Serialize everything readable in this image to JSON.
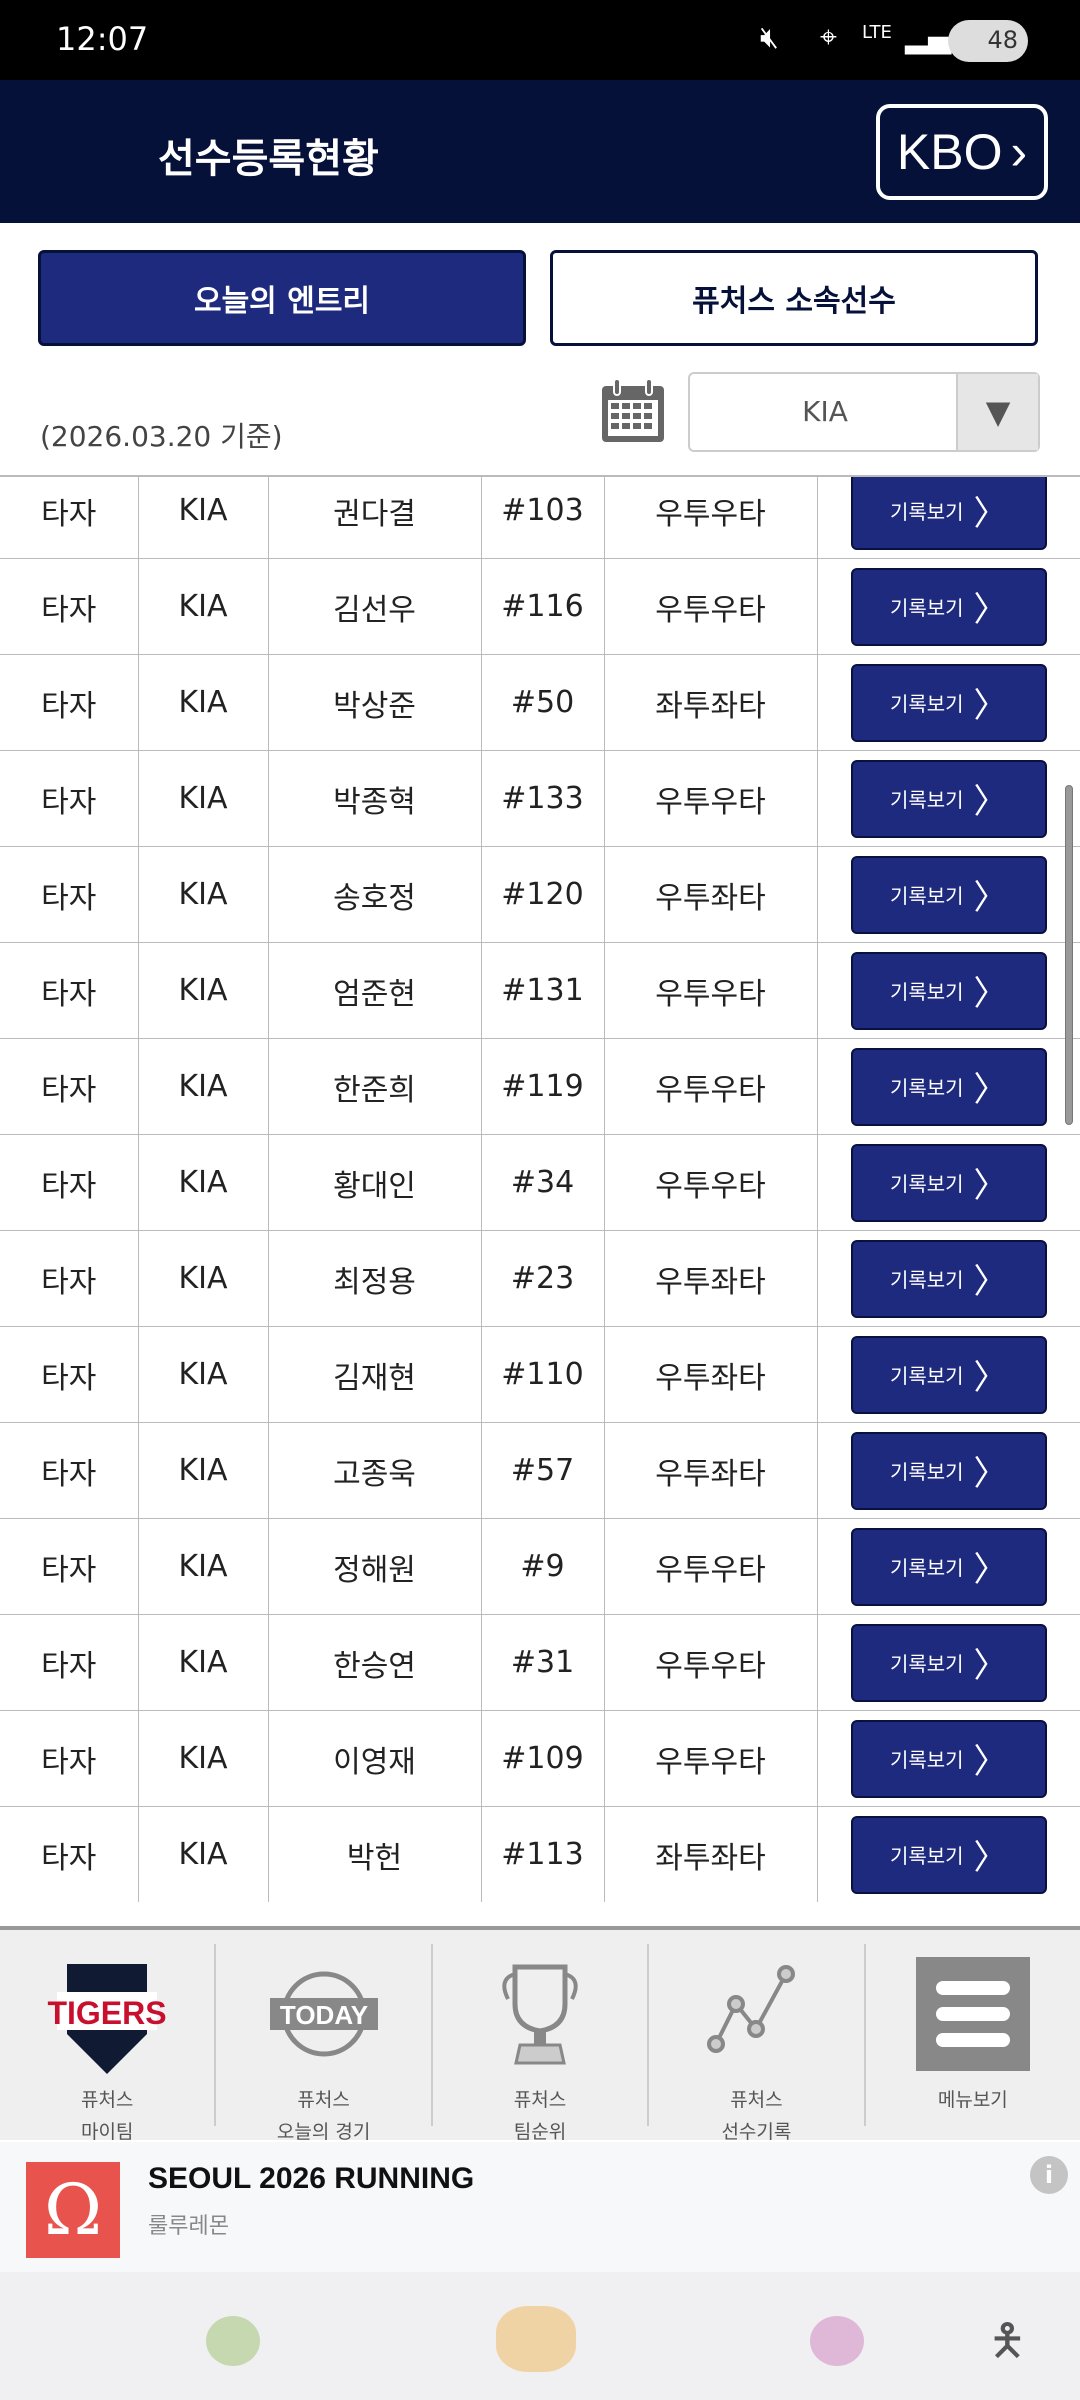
{
  "status": {
    "time": "12:07",
    "battery": "48",
    "network": "LTE"
  },
  "header": {
    "title": "선수등록현황",
    "kbo_label": "KBO",
    "kbo_chevron": "›"
  },
  "tabs": [
    {
      "label": "오늘의 엔트리",
      "active": true
    },
    {
      "label": "퓨처스 소속선수",
      "active": false
    }
  ],
  "filter": {
    "date": "(2026.03.20 기준)",
    "team": "KIA"
  },
  "record_button_label": "기록보기",
  "rows": [
    {
      "pos": "타자",
      "team": "KIA",
      "name": "권다결",
      "no": "#103",
      "hand": "우투우타"
    },
    {
      "pos": "타자",
      "team": "KIA",
      "name": "김선우",
      "no": "#116",
      "hand": "우투우타"
    },
    {
      "pos": "타자",
      "team": "KIA",
      "name": "박상준",
      "no": "#50",
      "hand": "좌투좌타"
    },
    {
      "pos": "타자",
      "team": "KIA",
      "name": "박종혁",
      "no": "#133",
      "hand": "우투우타"
    },
    {
      "pos": "타자",
      "team": "KIA",
      "name": "송호정",
      "no": "#120",
      "hand": "우투좌타"
    },
    {
      "pos": "타자",
      "team": "KIA",
      "name": "엄준현",
      "no": "#131",
      "hand": "우투우타"
    },
    {
      "pos": "타자",
      "team": "KIA",
      "name": "한준희",
      "no": "#119",
      "hand": "우투우타"
    },
    {
      "pos": "타자",
      "team": "KIA",
      "name": "황대인",
      "no": "#34",
      "hand": "우투우타"
    },
    {
      "pos": "타자",
      "team": "KIA",
      "name": "최정용",
      "no": "#23",
      "hand": "우투좌타"
    },
    {
      "pos": "타자",
      "team": "KIA",
      "name": "김재현",
      "no": "#110",
      "hand": "우투좌타"
    },
    {
      "pos": "타자",
      "team": "KIA",
      "name": "고종욱",
      "no": "#57",
      "hand": "우투좌타"
    },
    {
      "pos": "타자",
      "team": "KIA",
      "name": "정해원",
      "no": "#9",
      "hand": "우투우타"
    },
    {
      "pos": "타자",
      "team": "KIA",
      "name": "한승연",
      "no": "#31",
      "hand": "우투우타"
    },
    {
      "pos": "타자",
      "team": "KIA",
      "name": "이영재",
      "no": "#109",
      "hand": "우투우타"
    },
    {
      "pos": "타자",
      "team": "KIA",
      "name": "박헌",
      "no": "#113",
      "hand": "좌투좌타"
    }
  ],
  "bottom_nav": [
    {
      "line1": "퓨처스",
      "line2": "마이팀",
      "icon": "tigers-logo-icon"
    },
    {
      "line1": "퓨처스",
      "line2": "오늘의 경기",
      "icon": "today-ball-icon"
    },
    {
      "line1": "퓨처스",
      "line2": "팀순위",
      "icon": "trophy-icon"
    },
    {
      "line1": "퓨처스",
      "line2": "선수기록",
      "icon": "line-chart-icon"
    },
    {
      "line1": "",
      "line2": "메뉴보기",
      "icon": "menu-icon"
    }
  ],
  "logo_text": {
    "tigers": "TIGERS",
    "today": "TODAY"
  },
  "ad": {
    "title": "SEOUL 2026 RUNNING",
    "advertiser": "룰루레몬"
  },
  "colors": {
    "header": "#06113a",
    "button": "#1e2a7d",
    "ad_logo": "#e8534e"
  }
}
